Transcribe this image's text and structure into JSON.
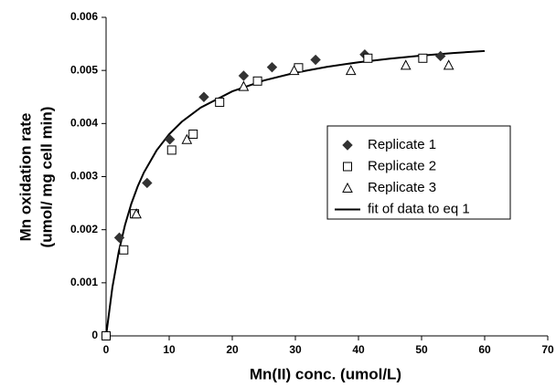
{
  "chart_data": {
    "type": "scatter",
    "xlabel": "Mn(II) conc. (umol/L)",
    "ylabel": [
      "Mn oxidation rate",
      "(umol/ mg cell min)"
    ],
    "xlim": [
      0,
      70
    ],
    "xticks": [
      0,
      10,
      20,
      30,
      40,
      50,
      60,
      70
    ],
    "ylim": [
      0,
      0.006
    ],
    "yticks": [
      0,
      0.001,
      0.002,
      0.003,
      0.004,
      0.005,
      0.006
    ],
    "grid": false,
    "legend": "right",
    "series": [
      {
        "name": "Replicate 1",
        "marker": "diamond",
        "color": "#333333",
        "x": [
          2.1,
          6.5,
          10.1,
          15.5,
          21.8,
          26.3,
          33.2,
          41,
          53
        ],
        "values": [
          0.00185,
          0.00288,
          0.0037,
          0.0045,
          0.0049,
          0.00506,
          0.0052,
          0.0053,
          0.00527
        ]
      },
      {
        "name": "Replicate 2",
        "marker": "square",
        "color": "#000000",
        "x": [
          0,
          2.8,
          4.5,
          10.4,
          13.8,
          18,
          24,
          30.5,
          41.5,
          50.2
        ],
        "values": [
          0,
          0.00162,
          0.0023,
          0.0035,
          0.0038,
          0.0044,
          0.0048,
          0.00505,
          0.00523,
          0.00523
        ]
      },
      {
        "name": "Replicate 3",
        "marker": "triangle",
        "color": "#000000",
        "x": [
          4.8,
          12.8,
          21.8,
          29.8,
          38.8,
          47.5,
          54.3
        ],
        "values": [
          0.0023,
          0.0037,
          0.0047,
          0.005,
          0.005,
          0.0051,
          0.0051
        ]
      },
      {
        "name": "fit of data to eq 1",
        "marker": "line",
        "color": "#000000",
        "x": [
          0,
          1,
          2,
          3,
          4,
          5,
          6,
          8,
          10,
          12,
          15,
          20,
          25,
          30,
          35,
          40,
          45,
          50,
          55,
          60
        ],
        "values": [
          0,
          0.000914,
          0.001581,
          0.002089,
          0.002489,
          0.002813,
          0.003079,
          0.003493,
          0.003799,
          0.004034,
          0.004301,
          0.004606,
          0.004811,
          0.004958,
          0.005068,
          0.005154,
          0.005223,
          0.00528,
          0.005327,
          0.005367
        ]
      }
    ]
  }
}
